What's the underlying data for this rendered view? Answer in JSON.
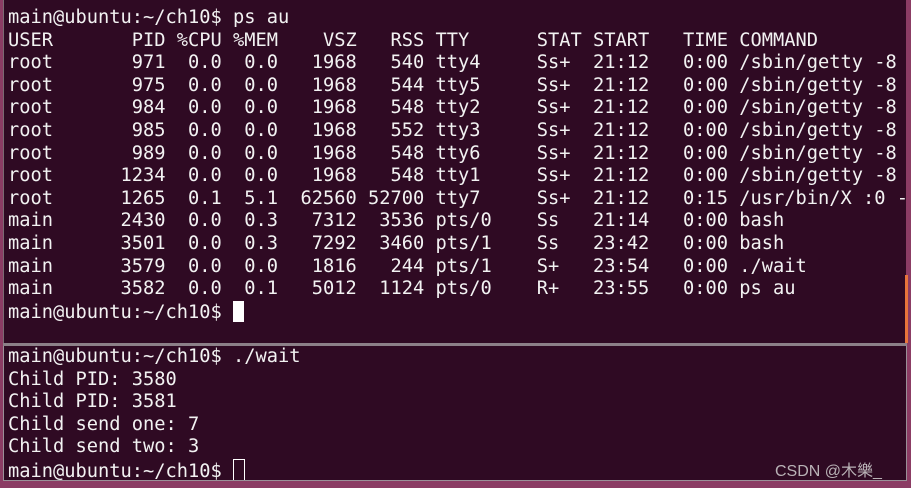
{
  "top_pane": {
    "prompt": "main@ubuntu:~/ch10$ ",
    "command": "ps au",
    "columns": [
      "USER",
      "PID",
      "%CPU",
      "%MEM",
      "VSZ",
      "RSS",
      "TTY",
      "STAT",
      "START",
      "TIME",
      "COMMAND"
    ],
    "rows": [
      [
        "root",
        "971",
        "0.0",
        "0.0",
        "1968",
        "540",
        "tty4",
        "Ss+",
        "21:12",
        "0:00",
        "/sbin/getty -8"
      ],
      [
        "root",
        "975",
        "0.0",
        "0.0",
        "1968",
        "544",
        "tty5",
        "Ss+",
        "21:12",
        "0:00",
        "/sbin/getty -8"
      ],
      [
        "root",
        "984",
        "0.0",
        "0.0",
        "1968",
        "548",
        "tty2",
        "Ss+",
        "21:12",
        "0:00",
        "/sbin/getty -8"
      ],
      [
        "root",
        "985",
        "0.0",
        "0.0",
        "1968",
        "552",
        "tty3",
        "Ss+",
        "21:12",
        "0:00",
        "/sbin/getty -8"
      ],
      [
        "root",
        "989",
        "0.0",
        "0.0",
        "1968",
        "548",
        "tty6",
        "Ss+",
        "21:12",
        "0:00",
        "/sbin/getty -8"
      ],
      [
        "root",
        "1234",
        "0.0",
        "0.0",
        "1968",
        "548",
        "tty1",
        "Ss+",
        "21:12",
        "0:00",
        "/sbin/getty -8"
      ],
      [
        "root",
        "1265",
        "0.1",
        "5.1",
        "62560",
        "52700",
        "tty7",
        "Ss+",
        "21:12",
        "0:15",
        "/usr/bin/X :0 -"
      ],
      [
        "main",
        "2430",
        "0.0",
        "0.3",
        "7312",
        "3536",
        "pts/0",
        "Ss",
        "21:14",
        "0:00",
        "bash"
      ],
      [
        "main",
        "3501",
        "0.0",
        "0.3",
        "7292",
        "3460",
        "pts/1",
        "Ss",
        "23:42",
        "0:00",
        "bash"
      ],
      [
        "main",
        "3579",
        "0.0",
        "0.0",
        "1816",
        "244",
        "pts/1",
        "S+",
        "23:54",
        "0:00",
        "./wait"
      ],
      [
        "main",
        "3582",
        "0.0",
        "0.1",
        "5012",
        "1124",
        "pts/0",
        "R+",
        "23:55",
        "0:00",
        "ps au"
      ]
    ],
    "final_prompt": "main@ubuntu:~/ch10$ "
  },
  "bottom_pane": {
    "prompt": "main@ubuntu:~/ch10$ ",
    "command": "./wait",
    "output": [
      "Child PID: 3580",
      "Child PID: 3581",
      "Child send one: 7",
      "Child send two: 3"
    ],
    "final_prompt": "main@ubuntu:~/ch10$ "
  },
  "watermark": "CSDN @木樂_",
  "colors": {
    "background": "#2f0a23",
    "text": "#f2f2f2",
    "scrollbar": "#e8743b",
    "frame": "#8b3c64"
  }
}
